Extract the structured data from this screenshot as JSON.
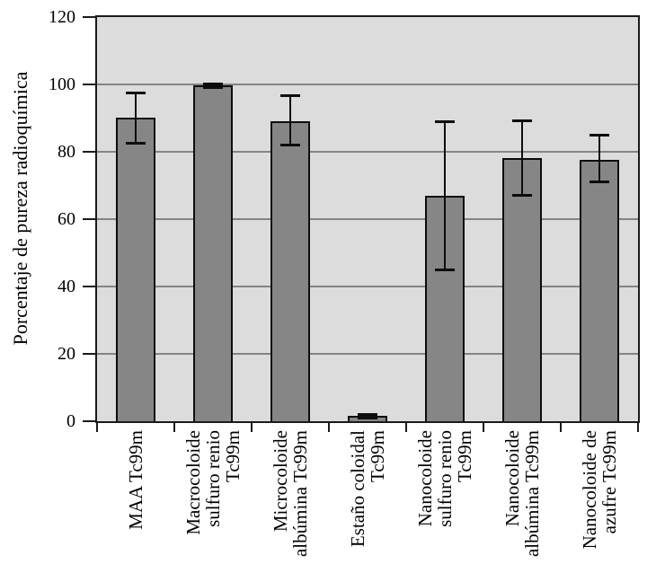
{
  "chart_data": {
    "type": "bar",
    "title": "",
    "xlabel": "",
    "ylabel": "Porcentaje de pureza radioquímica",
    "ylim": [
      0,
      120
    ],
    "yticks": [
      0,
      20,
      40,
      60,
      80,
      100,
      120
    ],
    "grid": "horizontal gridlines at each y-tick, behind bars",
    "legend_position": "none",
    "categories": [
      "MAA Tc99m",
      "Macrocoloide sulfuro renio Tc99m",
      "Microcoloide albúmina Tc99m",
      "Estaño coloidal Tc99m",
      "Nanocoloide sulfuro renio Tc99m",
      "Nanocoloide albúmina Tc99m",
      "Nanocoloide de azufre Tc99m"
    ],
    "category_label_lines": [
      [
        "MAA Tc99m"
      ],
      [
        "Macrocoloide",
        "sulfuro renio",
        "Tc99m"
      ],
      [
        "Microcoloide",
        "albúmina Tc99m"
      ],
      [
        "Estaño coloidal",
        "Tc99m"
      ],
      [
        "Nanocoloide",
        "sulfuro renio",
        "Tc99m"
      ],
      [
        "Nanocoloide",
        "albúmina Tc99m"
      ],
      [
        "Nanocoloide de",
        "azufre Tc99m"
      ]
    ],
    "values": [
      90,
      99.7,
      89,
      1.5,
      67,
      78,
      77.5
    ],
    "error_low": [
      82.5,
      99,
      82,
      0.8,
      44.7,
      67,
      71
    ],
    "error_high": [
      97.5,
      100.4,
      96.8,
      2.2,
      89.2,
      89.3,
      85
    ],
    "colors": {
      "bar_fill": "#868686",
      "bar_border": "#0d0d0d",
      "error_bar": "#0d0d0d",
      "plot_background": "#dcdcdc",
      "gridline": "#848484",
      "axis_frame": "#1a1a1a",
      "text": "#000000",
      "outer_background": "#ffffff"
    }
  }
}
